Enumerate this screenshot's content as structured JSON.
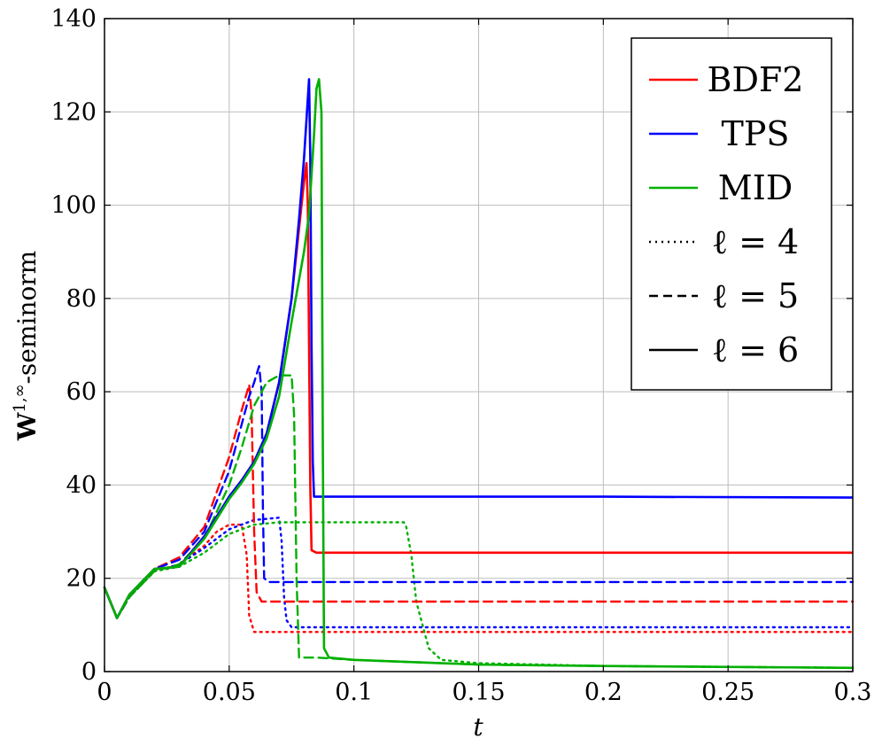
{
  "chart_data": {
    "type": "line",
    "xlabel": "t",
    "ylabel": "W^{1,∞}-seminorm",
    "ylabel_parts": {
      "main": "W",
      "sup": "1,∞",
      "rest": "-seminorm"
    },
    "xlim": [
      0,
      0.3
    ],
    "ylim": [
      0,
      140
    ],
    "x_ticks": [
      0,
      0.05,
      0.1,
      0.15,
      0.2,
      0.25,
      0.3
    ],
    "x_tick_labels": [
      "0",
      "0.05",
      "0.1",
      "0.15",
      "0.2",
      "0.25",
      "0.3"
    ],
    "y_ticks": [
      0,
      20,
      40,
      60,
      80,
      100,
      120,
      140
    ],
    "y_tick_labels": [
      "0",
      "20",
      "40",
      "60",
      "80",
      "100",
      "120",
      "140"
    ],
    "grid": true,
    "legend_position": "top-right",
    "colors": {
      "BDF2": "#ff0000",
      "TPS": "#0000ff",
      "MID": "#00b000"
    },
    "legend": [
      {
        "label": "BDF2",
        "color": "#ff0000",
        "dash": "solid"
      },
      {
        "label": "TPS",
        "color": "#0000ff",
        "dash": "solid"
      },
      {
        "label": "MID",
        "color": "#00b000",
        "dash": "solid"
      },
      {
        "label": "ℓ = 4",
        "color": "#000000",
        "dash": "dotted"
      },
      {
        "label": "ℓ = 5",
        "color": "#000000",
        "dash": "dashed"
      },
      {
        "label": "ℓ = 6",
        "color": "#000000",
        "dash": "solid"
      }
    ],
    "series": [
      {
        "method": "BDF2",
        "level": 4,
        "color": "#ff0000",
        "dash": "dotted",
        "x": [
          0,
          0.005,
          0.01,
          0.02,
          0.03,
          0.04,
          0.045,
          0.05,
          0.055,
          0.057,
          0.058,
          0.06,
          0.07,
          0.1,
          0.2,
          0.3
        ],
        "y": [
          18,
          11.5,
          16,
          21.5,
          23,
          27,
          30,
          31.5,
          31.5,
          25,
          12,
          8.5,
          8.5,
          8.5,
          8.5,
          8.5
        ]
      },
      {
        "method": "TPS",
        "level": 4,
        "color": "#0000ff",
        "dash": "dotted",
        "x": [
          0,
          0.005,
          0.01,
          0.02,
          0.03,
          0.04,
          0.05,
          0.06,
          0.07,
          0.071,
          0.072,
          0.073,
          0.075,
          0.08,
          0.1,
          0.2,
          0.3
        ],
        "y": [
          18,
          11.5,
          16,
          21.5,
          23,
          26.5,
          30.5,
          32.5,
          33,
          28,
          16,
          11,
          9.5,
          9.5,
          9.5,
          9.5,
          9.5
        ]
      },
      {
        "method": "MID",
        "level": 4,
        "color": "#00b000",
        "dash": "dotted",
        "x": [
          0,
          0.005,
          0.01,
          0.02,
          0.03,
          0.04,
          0.05,
          0.06,
          0.07,
          0.1,
          0.12,
          0.121,
          0.123,
          0.125,
          0.13,
          0.135,
          0.15,
          0.2,
          0.25,
          0.3
        ],
        "y": [
          18,
          11.5,
          16,
          21.5,
          22.5,
          25.5,
          29.5,
          31.5,
          32,
          32,
          32,
          31,
          25,
          15,
          5,
          2.5,
          1.8,
          1.2,
          1,
          0.8
        ]
      },
      {
        "method": "BDF2",
        "level": 5,
        "color": "#ff0000",
        "dash": "dashed",
        "x": [
          0,
          0.005,
          0.01,
          0.02,
          0.03,
          0.04,
          0.05,
          0.055,
          0.058,
          0.059,
          0.06,
          0.061,
          0.063,
          0.07,
          0.1,
          0.2,
          0.3
        ],
        "y": [
          18,
          11.5,
          16,
          22,
          24.5,
          31,
          46,
          56,
          61.5,
          55,
          30,
          17,
          15,
          15,
          15,
          15,
          15
        ]
      },
      {
        "method": "TPS",
        "level": 5,
        "color": "#0000ff",
        "dash": "dashed",
        "x": [
          0,
          0.005,
          0.01,
          0.02,
          0.03,
          0.04,
          0.05,
          0.055,
          0.058,
          0.06,
          0.062,
          0.063,
          0.0635,
          0.064,
          0.066,
          0.07,
          0.1,
          0.2,
          0.3
        ],
        "y": [
          18,
          11.5,
          16,
          22,
          24,
          30,
          43,
          53,
          59,
          62,
          65.5,
          60,
          35,
          20,
          19.2,
          19.2,
          19.2,
          19.2,
          19.2
        ]
      },
      {
        "method": "MID",
        "level": 5,
        "color": "#00b000",
        "dash": "dashed",
        "x": [
          0,
          0.005,
          0.01,
          0.02,
          0.03,
          0.04,
          0.05,
          0.055,
          0.06,
          0.065,
          0.07,
          0.075,
          0.076,
          0.077,
          0.078,
          0.085,
          0.1,
          0.15,
          0.2,
          0.3
        ],
        "y": [
          18,
          11.5,
          16,
          21.5,
          23,
          28.5,
          40,
          48,
          57,
          62,
          63.5,
          63.5,
          55,
          20,
          3,
          3,
          2.5,
          1.5,
          1.2,
          0.8
        ]
      },
      {
        "method": "BDF2",
        "level": 6,
        "color": "#ff0000",
        "dash": "solid",
        "x": [
          0,
          0.005,
          0.01,
          0.02,
          0.03,
          0.04,
          0.05,
          0.055,
          0.06,
          0.065,
          0.07,
          0.075,
          0.078,
          0.08,
          0.081,
          0.0815,
          0.082,
          0.0825,
          0.083,
          0.085,
          0.1,
          0.2,
          0.3
        ],
        "y": [
          18,
          11.5,
          16.5,
          22,
          22.5,
          29,
          37.5,
          41,
          45,
          51,
          62,
          80,
          95,
          105,
          109,
          100,
          70,
          40,
          26,
          25.5,
          25.5,
          25.5,
          25.5
        ]
      },
      {
        "method": "TPS",
        "level": 6,
        "color": "#0000ff",
        "dash": "solid",
        "x": [
          0,
          0.005,
          0.01,
          0.02,
          0.03,
          0.04,
          0.05,
          0.055,
          0.06,
          0.065,
          0.07,
          0.075,
          0.078,
          0.08,
          0.082,
          0.0825,
          0.083,
          0.0835,
          0.084,
          0.086,
          0.1,
          0.2,
          0.3
        ],
        "y": [
          18,
          11.5,
          16.5,
          22,
          22.5,
          29,
          37.5,
          41,
          45,
          51,
          62,
          80,
          97,
          110,
          127,
          110,
          70,
          45,
          37.5,
          37.5,
          37.5,
          37.5,
          37.3
        ]
      },
      {
        "method": "MID",
        "level": 6,
        "color": "#00b000",
        "dash": "solid",
        "x": [
          0,
          0.005,
          0.01,
          0.02,
          0.03,
          0.04,
          0.05,
          0.055,
          0.06,
          0.065,
          0.07,
          0.075,
          0.08,
          0.082,
          0.084,
          0.085,
          0.086,
          0.087,
          0.0875,
          0.088,
          0.09,
          0.1,
          0.15,
          0.2,
          0.3
        ],
        "y": [
          18,
          11.5,
          16.5,
          22,
          22.5,
          28.5,
          37,
          40.5,
          44.5,
          50,
          59,
          75,
          90,
          98,
          115,
          125,
          127,
          120,
          50,
          5,
          3,
          2.5,
          1.5,
          1.2,
          0.8
        ]
      }
    ]
  }
}
